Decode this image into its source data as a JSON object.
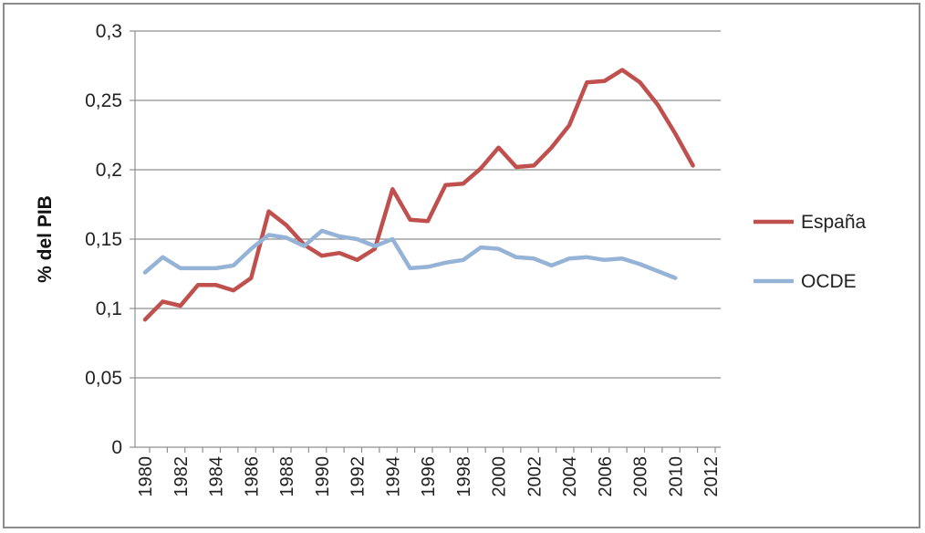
{
  "chart_data": {
    "type": "line",
    "ylabel": "% del PIB",
    "xlabel": "",
    "title": "",
    "ylim": [
      0,
      0.3
    ],
    "xlim": [
      1980,
      2012
    ],
    "yticks": [
      "0",
      "0,05",
      "0,1",
      "0,15",
      "0,2",
      "0,25",
      "0,3"
    ],
    "xticks": [
      "1980",
      "1982",
      "1984",
      "1986",
      "1988",
      "1990",
      "1992",
      "1994",
      "1996",
      "1998",
      "2000",
      "2002",
      "2004",
      "2006",
      "2008",
      "2010",
      "2012"
    ],
    "grid": true,
    "legend": "right",
    "series": [
      {
        "name": "España",
        "color": "#c0504d",
        "x": [
          1980,
          1981,
          1982,
          1983,
          1984,
          1985,
          1986,
          1987,
          1988,
          1989,
          1990,
          1991,
          1992,
          1993,
          1994,
          1995,
          1996,
          1997,
          1998,
          1999,
          2000,
          2001,
          2002,
          2003,
          2004,
          2005,
          2006,
          2007,
          2008,
          2009,
          2010,
          2011
        ],
        "values": [
          0.092,
          0.105,
          0.102,
          0.117,
          0.117,
          0.113,
          0.122,
          0.17,
          0.16,
          0.146,
          0.138,
          0.14,
          0.135,
          0.143,
          0.186,
          0.164,
          0.163,
          0.189,
          0.19,
          0.201,
          0.216,
          0.202,
          0.203,
          0.216,
          0.232,
          0.263,
          0.264,
          0.272,
          0.263,
          0.247,
          0.226,
          0.203
        ]
      },
      {
        "name": "OCDE",
        "color": "#95b3d7",
        "x": [
          1980,
          1981,
          1982,
          1983,
          1984,
          1985,
          1986,
          1987,
          1988,
          1989,
          1990,
          1991,
          1992,
          1993,
          1994,
          1995,
          1996,
          1997,
          1998,
          1999,
          2000,
          2001,
          2002,
          2003,
          2004,
          2005,
          2006,
          2007,
          2008,
          2009,
          2010
        ],
        "values": [
          0.126,
          0.137,
          0.129,
          0.129,
          0.129,
          0.131,
          0.143,
          0.153,
          0.151,
          0.145,
          0.156,
          0.152,
          0.15,
          0.145,
          0.15,
          0.129,
          0.13,
          0.133,
          0.135,
          0.144,
          0.143,
          0.137,
          0.136,
          0.131,
          0.136,
          0.137,
          0.135,
          0.136,
          0.132,
          0.127,
          0.122
        ]
      }
    ]
  }
}
